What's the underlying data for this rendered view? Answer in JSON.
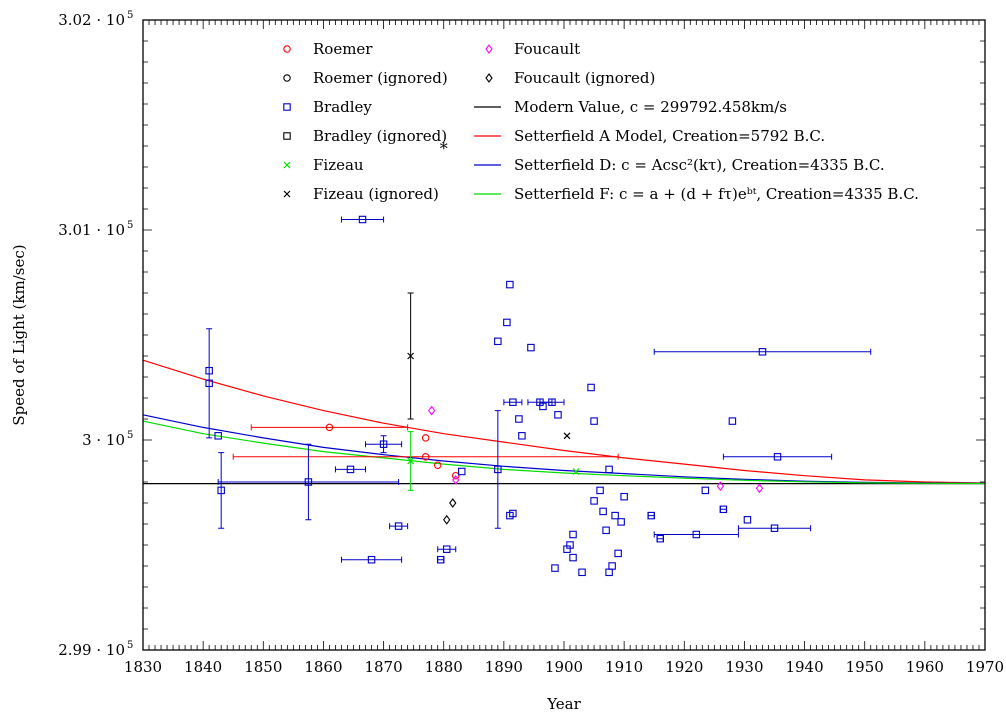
{
  "chart_data": {
    "type": "scatter",
    "xlabel": "Year",
    "ylabel": "Speed of Light (km/sec)",
    "xlim": [
      1830,
      1970
    ],
    "ylim": [
      299000,
      302000
    ],
    "x_ticks": [
      1830,
      1840,
      1850,
      1860,
      1870,
      1880,
      1890,
      1900,
      1910,
      1920,
      1930,
      1940,
      1950,
      1960,
      1970
    ],
    "x_tick_labels": [
      "1830",
      "1840",
      "1850",
      "1860",
      "1870",
      "1880",
      "1890",
      "1900",
      "1910",
      "1920",
      "1930",
      "1940",
      "1950",
      "1960",
      "1970"
    ],
    "y_ticks": [
      299000,
      300000,
      301000,
      302000
    ],
    "y_tick_labels": [
      {
        "mantissa": "2.99 · 10",
        "exp": "5"
      },
      {
        "mantissa": "3 · 10",
        "exp": "5"
      },
      {
        "mantissa": "3.01 · 10",
        "exp": "5"
      },
      {
        "mantissa": "3.02 · 10",
        "exp": "5"
      }
    ],
    "legend_placement": "top",
    "colors": {
      "red": "#ff0000",
      "blue": "#0000cc",
      "green": "#00dd00",
      "magenta": "#ff00ff",
      "black": "#000000"
    },
    "legend": [
      {
        "label": "Roemer",
        "marker": "circle",
        "color": "#ff0000"
      },
      {
        "label": "Roemer (ignored)",
        "marker": "circle",
        "color": "#000000"
      },
      {
        "label": "Bradley",
        "marker": "square",
        "color": "#0000cc"
      },
      {
        "label": "Bradley (ignored)",
        "marker": "square",
        "color": "#000000"
      },
      {
        "label": "Fizeau",
        "marker": "x",
        "color": "#00dd00"
      },
      {
        "label": "Fizeau (ignored)",
        "marker": "x",
        "color": "#000000"
      },
      {
        "label": "Foucault",
        "marker": "diamond",
        "color": "#ff00ff"
      },
      {
        "label": "Foucault (ignored)",
        "marker": "diamond",
        "color": "#000000"
      },
      {
        "label": "Modern Value, c = 299792.458km/s",
        "marker": "line",
        "color": "#000000"
      },
      {
        "label": "Setterfield A Model, Creation=5792 B.C.",
        "marker": "line",
        "color": "#ff0000"
      },
      {
        "label": "Setterfield D: c = Acsc²(kτ), Creation=4335 B.C.",
        "marker": "line",
        "color": "#0000cc"
      },
      {
        "label": "Setterfield F: c = a + (d + fτ)eᵇᵗ, Creation=4335 B.C.",
        "marker": "line",
        "color": "#00dd00"
      }
    ],
    "series": [
      {
        "name": "Roemer",
        "marker": "circle",
        "color": "#ff0000",
        "points": [
          {
            "x": 1861,
            "y": 300060,
            "xerr": 13,
            "yerr": 0
          },
          {
            "x": 1877,
            "y": 299920,
            "xerr": 32,
            "yerr": 0
          },
          {
            "x": 1877,
            "y": 300010,
            "xerr": 0,
            "yerr": 0
          },
          {
            "x": 1879,
            "y": 299880,
            "xerr": 0,
            "yerr": 0
          },
          {
            "x": 1882,
            "y": 299830,
            "xerr": 0,
            "yerr": 0
          }
        ]
      },
      {
        "name": "Roemer (ignored)",
        "marker": "circle",
        "color": "#000000",
        "points": []
      },
      {
        "name": "Bradley",
        "marker": "square",
        "color": "#0000cc",
        "points": [
          {
            "x": 1841,
            "y": 300330,
            "xerr": 0,
            "yerr": 0
          },
          {
            "x": 1841,
            "y": 300270,
            "xerr": 0,
            "yerr": 260
          },
          {
            "x": 1842.5,
            "y": 300020,
            "xerr": 0,
            "yerr": 0
          },
          {
            "x": 1843,
            "y": 299760,
            "xerr": 0,
            "yerr": 180
          },
          {
            "x": 1857.5,
            "y": 299800,
            "xerr": 15,
            "yerr": 180
          },
          {
            "x": 1864.5,
            "y": 299860,
            "xerr": 2.5,
            "yerr": 0
          },
          {
            "x": 1866.5,
            "y": 301050,
            "xerr": 3.5,
            "yerr": 0
          },
          {
            "x": 1868,
            "y": 299430,
            "xerr": 5,
            "yerr": 0
          },
          {
            "x": 1872.5,
            "y": 299590,
            "xerr": 1.5,
            "yerr": 0
          },
          {
            "x": 1870,
            "y": 299980,
            "xerr": 3,
            "yerr": 40
          },
          {
            "x": 1879.5,
            "y": 299430,
            "xerr": 0.5,
            "yerr": 0
          },
          {
            "x": 1880.5,
            "y": 299480,
            "xerr": 1.5,
            "yerr": 0
          },
          {
            "x": 1883,
            "y": 299850,
            "xerr": 0,
            "yerr": 0
          },
          {
            "x": 1889,
            "y": 300470,
            "xerr": 0,
            "yerr": 0
          },
          {
            "x": 1889,
            "y": 299860,
            "xerr": 0,
            "yerr": 280
          },
          {
            "x": 1890.5,
            "y": 300560,
            "xerr": 0,
            "yerr": 0
          },
          {
            "x": 1891,
            "y": 300740,
            "xerr": 0,
            "yerr": 0
          },
          {
            "x": 1891,
            "y": 299640,
            "xerr": 0,
            "yerr": 0
          },
          {
            "x": 1891.5,
            "y": 299650,
            "xerr": 0,
            "yerr": 0
          },
          {
            "x": 1891.5,
            "y": 300180,
            "xerr": 1.5,
            "yerr": 0
          },
          {
            "x": 1892.5,
            "y": 300100,
            "xerr": 0,
            "yerr": 0
          },
          {
            "x": 1893,
            "y": 300020,
            "xerr": 0,
            "yerr": 0
          },
          {
            "x": 1894.5,
            "y": 300440,
            "xerr": 0,
            "yerr": 0
          },
          {
            "x": 1896,
            "y": 300180,
            "xerr": 2,
            "yerr": 0
          },
          {
            "x": 1896.5,
            "y": 300160,
            "xerr": 0,
            "yerr": 0
          },
          {
            "x": 1898,
            "y": 300180,
            "xerr": 2,
            "yerr": 0
          },
          {
            "x": 1898.5,
            "y": 299390,
            "xerr": 0,
            "yerr": 0
          },
          {
            "x": 1899,
            "y": 300120,
            "xerr": 0,
            "yerr": 0
          },
          {
            "x": 1900.5,
            "y": 299480,
            "xerr": 0,
            "yerr": 0
          },
          {
            "x": 1901,
            "y": 299500,
            "xerr": 0,
            "yerr": 0
          },
          {
            "x": 1901.5,
            "y": 299440,
            "xerr": 0,
            "yerr": 0
          },
          {
            "x": 1901.5,
            "y": 299550,
            "xerr": 0,
            "yerr": 0
          },
          {
            "x": 1903,
            "y": 299370,
            "xerr": 0,
            "yerr": 0
          },
          {
            "x": 1904.5,
            "y": 300250,
            "xerr": 0,
            "yerr": 0
          },
          {
            "x": 1905,
            "y": 300090,
            "xerr": 0,
            "yerr": 0
          },
          {
            "x": 1905,
            "y": 299710,
            "xerr": 0,
            "yerr": 0
          },
          {
            "x": 1906,
            "y": 299760,
            "xerr": 0,
            "yerr": 0
          },
          {
            "x": 1906.5,
            "y": 299660,
            "xerr": 0,
            "yerr": 0
          },
          {
            "x": 1907,
            "y": 299570,
            "xerr": 0,
            "yerr": 0
          },
          {
            "x": 1907.5,
            "y": 299860,
            "xerr": 0,
            "yerr": 0
          },
          {
            "x": 1907.5,
            "y": 299370,
            "xerr": 0,
            "yerr": 0
          },
          {
            "x": 1908,
            "y": 299400,
            "xerr": 0,
            "yerr": 0
          },
          {
            "x": 1908.5,
            "y": 299640,
            "xerr": 0,
            "yerr": 0
          },
          {
            "x": 1909,
            "y": 299460,
            "xerr": 0,
            "yerr": 0
          },
          {
            "x": 1909.5,
            "y": 299610,
            "xerr": 0,
            "yerr": 0
          },
          {
            "x": 1910,
            "y": 299730,
            "xerr": 0,
            "yerr": 0
          },
          {
            "x": 1914.5,
            "y": 299640,
            "xerr": 0.5,
            "yerr": 0
          },
          {
            "x": 1916,
            "y": 299530,
            "xerr": 0.5,
            "yerr": 0
          },
          {
            "x": 1922,
            "y": 299550,
            "xerr": 7,
            "yerr": 0
          },
          {
            "x": 1923.5,
            "y": 299760,
            "xerr": 0,
            "yerr": 0
          },
          {
            "x": 1926.5,
            "y": 299670,
            "xerr": 0.5,
            "yerr": 0
          },
          {
            "x": 1928,
            "y": 300090,
            "xerr": 0,
            "yerr": 0
          },
          {
            "x": 1930.5,
            "y": 299620,
            "xerr": 0,
            "yerr": 0
          },
          {
            "x": 1933,
            "y": 300420,
            "xerr": 18,
            "yerr": 0
          },
          {
            "x": 1935,
            "y": 299580,
            "xerr": 6,
            "yerr": 0
          },
          {
            "x": 1935.5,
            "y": 299920,
            "xerr": 9,
            "yerr": 0
          }
        ]
      },
      {
        "name": "Bradley (ignored)",
        "marker": "square",
        "color": "#000000",
        "points": []
      },
      {
        "name": "Fizeau",
        "marker": "x",
        "color": "#00dd00",
        "points": [
          {
            "x": 1874.5,
            "y": 299900,
            "xerr": 0,
            "yerr": 140
          },
          {
            "x": 1902,
            "y": 299850,
            "xerr": 0,
            "yerr": 0
          }
        ]
      },
      {
        "name": "Fizeau (ignored)",
        "marker": "x",
        "color": "#000000",
        "points": [
          {
            "x": 1874.5,
            "y": 300400,
            "xerr": 0,
            "yerr": 300
          },
          {
            "x": 1900.5,
            "y": 300020,
            "xerr": 0,
            "yerr": 0
          }
        ]
      },
      {
        "name": "Foucault",
        "marker": "diamond",
        "color": "#ff00ff",
        "points": [
          {
            "x": 1878,
            "y": 300140,
            "xerr": 0,
            "yerr": 0
          },
          {
            "x": 1882,
            "y": 299810,
            "xerr": 0,
            "yerr": 0
          },
          {
            "x": 1926,
            "y": 299780,
            "xerr": 0,
            "yerr": 0
          },
          {
            "x": 1932.5,
            "y": 299770,
            "xerr": 0,
            "yerr": 0
          }
        ]
      },
      {
        "name": "Foucault (ignored)",
        "marker": "diamond",
        "color": "#000000",
        "points": [
          {
            "x": 1880.5,
            "y": 299620,
            "xerr": 0,
            "yerr": 0
          },
          {
            "x": 1881.5,
            "y": 299700,
            "xerr": 0,
            "yerr": 0
          }
        ]
      },
      {
        "name": "Modern Value, c = 299792.458km/s",
        "type": "line",
        "color": "#000000",
        "x": [
          1830,
          1970
        ],
        "y": [
          299792.458,
          299792.458
        ]
      },
      {
        "name": "Setterfield A Model, Creation=5792 B.C.",
        "type": "line",
        "color": "#ff0000",
        "x": [
          1830,
          1840,
          1850,
          1860,
          1870,
          1880,
          1890,
          1900,
          1910,
          1920,
          1930,
          1940,
          1950,
          1960,
          1970
        ],
        "y": [
          300380,
          300290,
          300210,
          300140,
          300080,
          300030,
          299990,
          299950,
          299915,
          299885,
          299855,
          299830,
          299810,
          299800,
          299795
        ]
      },
      {
        "name": "Setterfield D: c = Acsc²(kτ), Creation=4335 B.C.",
        "type": "line",
        "color": "#0000cc",
        "x": [
          1830,
          1840,
          1850,
          1860,
          1870,
          1880,
          1890,
          1900,
          1910,
          1920,
          1930,
          1940,
          1950,
          1960,
          1970
        ],
        "y": [
          300120,
          300060,
          300010,
          299965,
          299930,
          299900,
          299875,
          299855,
          299840,
          299825,
          299813,
          299804,
          299798,
          299795,
          299794
        ]
      },
      {
        "name": "Setterfield F: c = a + (d + fτ)eᵇᵗ, Creation=4335 B.C.",
        "type": "line",
        "color": "#00dd00",
        "x": [
          1830,
          1840,
          1850,
          1860,
          1870,
          1880,
          1890,
          1900,
          1910,
          1920,
          1930,
          1940,
          1950,
          1960,
          1970
        ],
        "y": [
          300090,
          300030,
          299985,
          299945,
          299915,
          299885,
          299860,
          299843,
          299830,
          299818,
          299808,
          299801,
          299796,
          299794,
          299793
        ]
      }
    ],
    "annotations": [
      {
        "text": "*",
        "x": 1880,
        "y": 301390,
        "color": "#000000"
      }
    ]
  }
}
